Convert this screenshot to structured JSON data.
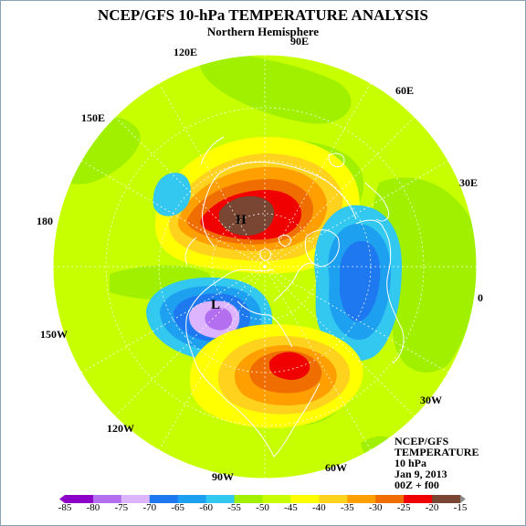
{
  "title": "NCEP/GFS 10-hPa TEMPERATURE ANALYSIS",
  "subtitle": "Northern Hemisphere",
  "longitude_labels": [
    {
      "key": "90E",
      "text": "90E"
    },
    {
      "key": "120E",
      "text": "120E"
    },
    {
      "key": "60E",
      "text": "60E"
    },
    {
      "key": "150E",
      "text": "150E"
    },
    {
      "key": "30E",
      "text": "30E"
    },
    {
      "key": "180",
      "text": "180"
    },
    {
      "key": "0",
      "text": "0"
    },
    {
      "key": "150W",
      "text": "150W"
    },
    {
      "key": "30W",
      "text": "30W"
    },
    {
      "key": "120W",
      "text": "120W"
    },
    {
      "key": "90W",
      "text": "90W"
    },
    {
      "key": "60W",
      "text": "60W"
    }
  ],
  "centers": [
    {
      "text": "H",
      "label": "warm-high"
    },
    {
      "text": "L",
      "label": "cold-low"
    }
  ],
  "info_block": [
    "NCEP/GFS",
    "TEMPERATURE",
    "10 hPa",
    "Jan 9, 2013",
    "00Z + f00"
  ],
  "colorbar": {
    "ticks": [
      "-85",
      "-80",
      "-75",
      "-70",
      "-65",
      "-60",
      "-55",
      "-50",
      "-45",
      "-40",
      "-35",
      "-30",
      "-25",
      "-20",
      "-15"
    ],
    "colors": [
      "#8c00c8",
      "#b46ef0",
      "#dcb4ff",
      "#1e78f0",
      "#1ea0f0",
      "#32c8f0",
      "#a0f000",
      "#c8ff00",
      "#ffff00",
      "#ffd21e",
      "#ffa000",
      "#f06e00",
      "#f00000",
      "#784632"
    ]
  }
}
